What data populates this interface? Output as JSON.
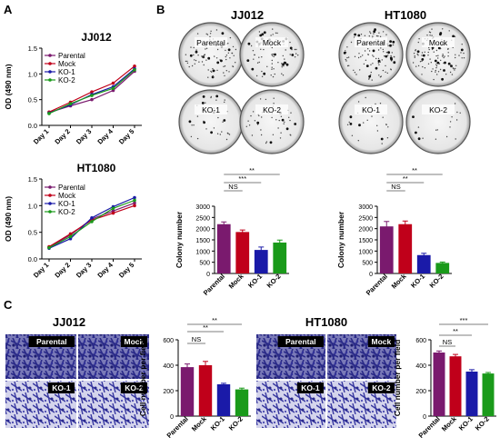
{
  "panels": {
    "A": {
      "letter": "A"
    },
    "B": {
      "letter": "B",
      "titles": [
        "JJ012",
        "HT1080"
      ],
      "dish_labels": [
        "Parental",
        "Mock",
        "KO-1",
        "KO-2"
      ]
    },
    "C": {
      "letter": "C",
      "titles": [
        "JJ012",
        "HT1080"
      ],
      "image_labels": [
        "Parental",
        "Mock",
        "KO-1",
        "KO-2"
      ]
    }
  },
  "colors": {
    "Parental": "#7a1a6e",
    "Mock": "#c0001a",
    "KO-1": "#1a1aa8",
    "KO-2": "#1a9a1a"
  },
  "chart_data": [
    {
      "type": "line",
      "title": "JJ012",
      "xlabel": "",
      "ylabel": "OD (490 nm)",
      "categories": [
        "Day 1",
        "Day 2",
        "Day 3",
        "Day 4",
        "Day 5"
      ],
      "ylim": [
        0,
        1.5
      ],
      "yticks": [
        "0.0",
        "0.5",
        "1.0",
        "1.5"
      ],
      "legend": "top-left",
      "series": [
        {
          "name": "Parental",
          "values": [
            0.25,
            0.38,
            0.5,
            0.68,
            1.05
          ]
        },
        {
          "name": "Mock",
          "values": [
            0.26,
            0.45,
            0.65,
            0.82,
            1.15
          ]
        },
        {
          "name": "KO-1",
          "values": [
            0.24,
            0.4,
            0.6,
            0.75,
            1.1
          ]
        },
        {
          "name": "KO-2",
          "values": [
            0.23,
            0.42,
            0.58,
            0.72,
            1.08
          ]
        }
      ]
    },
    {
      "type": "line",
      "title": "HT1080",
      "xlabel": "",
      "ylabel": "OD (490 nm)",
      "categories": [
        "Day 1",
        "Day 2",
        "Day 3",
        "Day 4",
        "Day 5"
      ],
      "ylim": [
        0,
        1.5
      ],
      "yticks": [
        "0.0",
        "0.5",
        "1.0",
        "1.5"
      ],
      "legend": "top-left",
      "series": [
        {
          "name": "Parental",
          "values": [
            0.22,
            0.45,
            0.75,
            0.9,
            1.05
          ]
        },
        {
          "name": "Mock",
          "values": [
            0.23,
            0.47,
            0.73,
            0.86,
            1.0
          ]
        },
        {
          "name": "KO-1",
          "values": [
            0.2,
            0.38,
            0.77,
            0.98,
            1.15
          ]
        },
        {
          "name": "KO-2",
          "values": [
            0.21,
            0.42,
            0.7,
            0.95,
            1.1
          ]
        }
      ]
    },
    {
      "type": "bar",
      "title": "",
      "xlabel": "",
      "ylabel": "Colony number",
      "categories": [
        "Parental",
        "Mock",
        "KO-1",
        "KO-2"
      ],
      "values": [
        2200,
        1850,
        1050,
        1380
      ],
      "errors": [
        100,
        90,
        130,
        110
      ],
      "ylim": [
        0,
        3000
      ],
      "yticks": [
        "0",
        "500",
        "1000",
        "1500",
        "2000",
        "2500",
        "3000"
      ],
      "significance": [
        {
          "from": "Parental",
          "to": "Mock",
          "label": "NS"
        },
        {
          "from": "Parental",
          "to": "KO-1",
          "label": "***"
        },
        {
          "from": "Parental",
          "to": "KO-2",
          "label": "**"
        }
      ]
    },
    {
      "type": "bar",
      "title": "",
      "xlabel": "",
      "ylabel": "Colony number",
      "categories": [
        "Parental",
        "Mock",
        "KO-1",
        "KO-2"
      ],
      "values": [
        2100,
        2200,
        820,
        470
      ],
      "errors": [
        220,
        140,
        80,
        40
      ],
      "ylim": [
        0,
        3000
      ],
      "yticks": [
        "0",
        "500",
        "1000",
        "1500",
        "2000",
        "2500",
        "3000"
      ],
      "significance": [
        {
          "from": "Parental",
          "to": "Mock",
          "label": "NS"
        },
        {
          "from": "Parental",
          "to": "KO-1",
          "label": "**"
        },
        {
          "from": "Parental",
          "to": "KO-2",
          "label": "**"
        }
      ]
    },
    {
      "type": "bar",
      "title": "",
      "xlabel": "",
      "ylabel": "Cell number per field",
      "categories": [
        "Parental",
        "Mock",
        "KO-1",
        "KO-2"
      ],
      "values": [
        385,
        400,
        250,
        210
      ],
      "errors": [
        25,
        30,
        8,
        10
      ],
      "ylim": [
        0,
        600
      ],
      "yticks": [
        "0",
        "200",
        "400",
        "600"
      ],
      "significance": [
        {
          "from": "Parental",
          "to": "Mock",
          "label": "NS"
        },
        {
          "from": "Parental",
          "to": "KO-1",
          "label": "**"
        },
        {
          "from": "Parental",
          "to": "KO-2",
          "label": "**"
        }
      ]
    },
    {
      "type": "bar",
      "title": "",
      "xlabel": "",
      "ylabel": "Cell number per field",
      "categories": [
        "Parental",
        "Mock",
        "KO-1",
        "KO-2"
      ],
      "values": [
        500,
        470,
        350,
        335
      ],
      "errors": [
        12,
        15,
        15,
        8
      ],
      "ylim": [
        0,
        600
      ],
      "yticks": [
        "0",
        "200",
        "400",
        "600"
      ],
      "significance": [
        {
          "from": "Parental",
          "to": "Mock",
          "label": "NS"
        },
        {
          "from": "Parental",
          "to": "KO-1",
          "label": "**"
        },
        {
          "from": "Parental",
          "to": "KO-2",
          "label": "***"
        }
      ]
    }
  ]
}
